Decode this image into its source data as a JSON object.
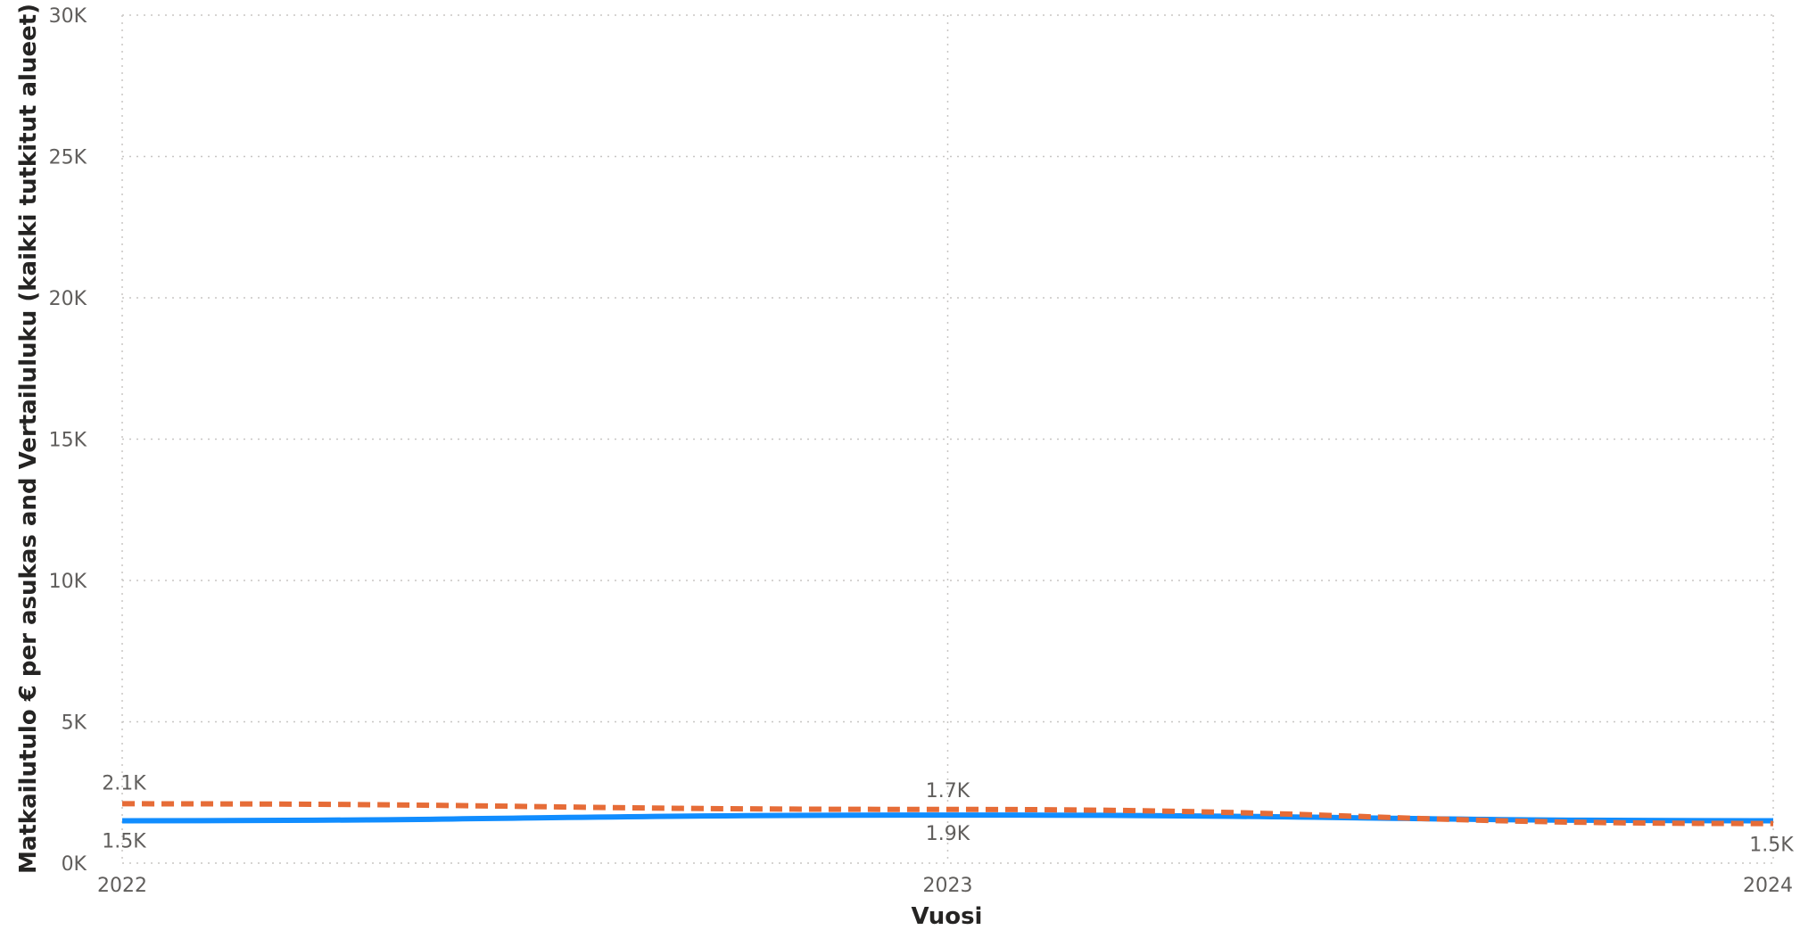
{
  "chart_data": {
    "type": "line",
    "xlabel": "Vuosi",
    "ylabel": "Matkailutulo € per asukas and Vertailuluku (kaikki tutkitut alueet)",
    "x": [
      "2022",
      "2023",
      "2024"
    ],
    "ylim": [
      0,
      30000
    ],
    "y_ticks": [
      {
        "value": 0,
        "label": "0K"
      },
      {
        "value": 5000,
        "label": "5K"
      },
      {
        "value": 10000,
        "label": "10K"
      },
      {
        "value": 15000,
        "label": "15K"
      },
      {
        "value": 20000,
        "label": "20K"
      },
      {
        "value": 25000,
        "label": "25K"
      },
      {
        "value": 30000,
        "label": "30K"
      }
    ],
    "grid": true,
    "series": [
      {
        "values": [
          1500,
          1700,
          1500
        ],
        "labels": [
          "1.5K",
          "1.7K",
          "1.5K"
        ],
        "color": "#118DFF",
        "style": "solid"
      },
      {
        "values": [
          2100,
          1900,
          1400
        ],
        "labels": [
          "2.1K",
          "1.9K",
          ""
        ],
        "color": "#E66C37",
        "style": "dashed"
      }
    ]
  }
}
